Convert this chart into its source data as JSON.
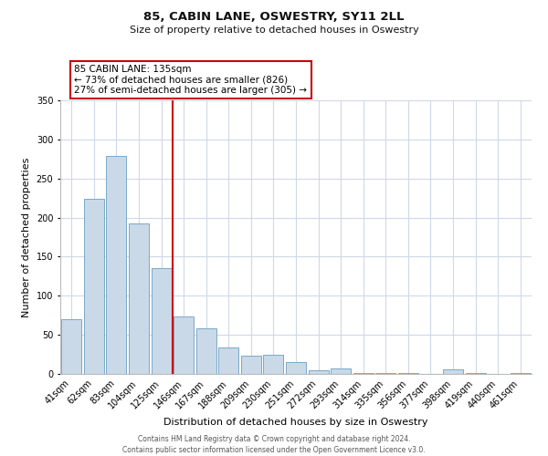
{
  "title": "85, CABIN LANE, OSWESTRY, SY11 2LL",
  "subtitle": "Size of property relative to detached houses in Oswestry",
  "xlabel": "Distribution of detached houses by size in Oswestry",
  "ylabel": "Number of detached properties",
  "bar_labels": [
    "41sqm",
    "62sqm",
    "83sqm",
    "104sqm",
    "125sqm",
    "146sqm",
    "167sqm",
    "188sqm",
    "209sqm",
    "230sqm",
    "251sqm",
    "272sqm",
    "293sqm",
    "314sqm",
    "335sqm",
    "356sqm",
    "377sqm",
    "398sqm",
    "419sqm",
    "440sqm",
    "461sqm"
  ],
  "bar_values": [
    70,
    224,
    279,
    193,
    135,
    73,
    58,
    34,
    23,
    25,
    15,
    5,
    7,
    1,
    1,
    1,
    0,
    6,
    1,
    0,
    1
  ],
  "bar_color": "#c9d9e8",
  "bar_edgecolor": "#7aa8c8",
  "ylim": [
    0,
    350
  ],
  "yticks": [
    0,
    50,
    100,
    150,
    200,
    250,
    300,
    350
  ],
  "vline_x_index": 5,
  "vline_color": "#cc0000",
  "annotation_line1": "85 CABIN LANE: 135sqm",
  "annotation_line2": "← 73% of detached houses are smaller (826)",
  "annotation_line3": "27% of semi-detached houses are larger (305) →",
  "footer_line1": "Contains HM Land Registry data © Crown copyright and database right 2024.",
  "footer_line2": "Contains public sector information licensed under the Open Government Licence v3.0.",
  "background_color": "#ffffff",
  "grid_color": "#d0d8e8",
  "title_fontsize": 9.5,
  "subtitle_fontsize": 8,
  "axis_label_fontsize": 8,
  "tick_fontsize": 7,
  "annot_fontsize": 7.5,
  "footer_fontsize": 5.5
}
